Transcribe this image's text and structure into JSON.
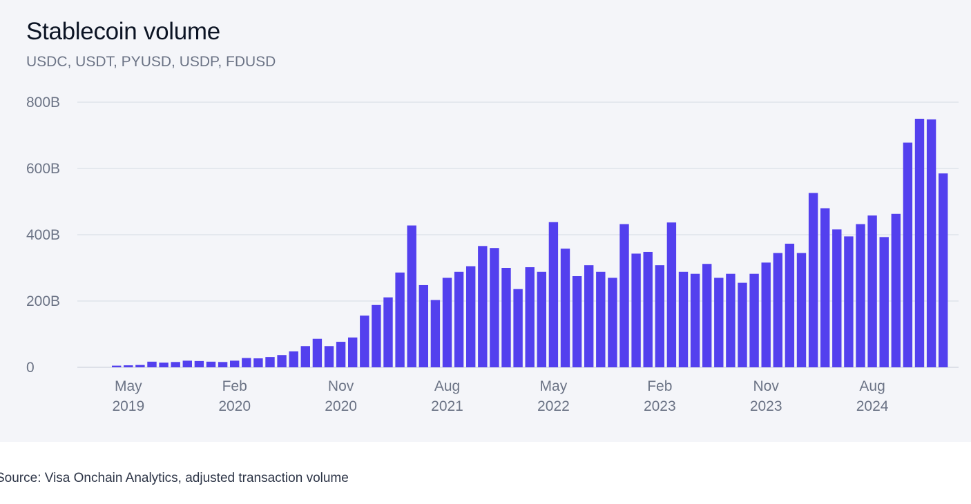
{
  "chart_data": {
    "type": "bar",
    "title": "Stablecoin volume",
    "subtitle": "USDC, USDT, PYUSD, USDP, FDUSD",
    "xlabel": "",
    "ylabel": "",
    "unit": "B",
    "ylim": [
      0,
      800
    ],
    "yticks": [
      0,
      200,
      400,
      600,
      800
    ],
    "ytick_labels": [
      "0",
      "200B",
      "400B",
      "600B",
      "800B"
    ],
    "grid": true,
    "color": "#5340ee",
    "start_month": "2019-04",
    "x_labels": [
      {
        "index": 1,
        "month": "May",
        "year": "2019"
      },
      {
        "index": 10,
        "month": "Feb",
        "year": "2020"
      },
      {
        "index": 19,
        "month": "Nov",
        "year": "2020"
      },
      {
        "index": 28,
        "month": "Aug",
        "year": "2021"
      },
      {
        "index": 37,
        "month": "May",
        "year": "2022"
      },
      {
        "index": 46,
        "month": "Feb",
        "year": "2023"
      },
      {
        "index": 55,
        "month": "Nov",
        "year": "2023"
      },
      {
        "index": 64,
        "month": "Aug",
        "year": "2024"
      }
    ],
    "values": [
      5,
      6,
      7,
      17,
      14,
      16,
      20,
      19,
      17,
      16,
      20,
      28,
      27,
      31,
      37,
      48,
      64,
      86,
      64,
      77,
      90,
      156,
      188,
      211,
      286,
      428,
      248,
      203,
      270,
      288,
      305,
      366,
      360,
      300,
      236,
      302,
      288,
      438,
      358,
      275,
      308,
      288,
      270,
      432,
      343,
      348,
      308,
      437,
      288,
      282,
      312,
      270,
      282,
      255,
      282,
      316,
      345,
      373,
      345,
      526,
      480,
      416,
      395,
      432,
      458,
      393,
      463,
      678,
      750,
      748,
      585
    ]
  },
  "source": "Source: Visa Onchain Analytics, adjusted transaction volume"
}
